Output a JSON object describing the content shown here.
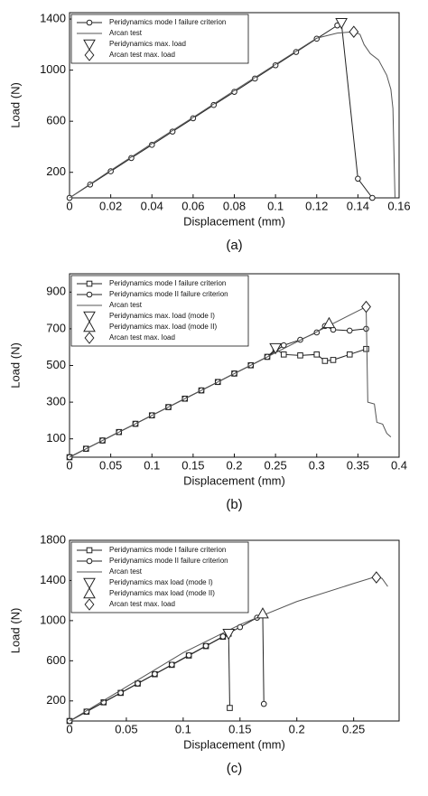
{
  "chart_data": [
    {
      "type": "line",
      "caption": "(a)",
      "x_label": "Displacement (mm)",
      "y_label": "Load (N)",
      "xlim": [
        0,
        0.16
      ],
      "xticks": [
        0,
        0.02,
        0.04,
        0.06,
        0.08,
        0.1,
        0.12,
        0.14,
        0.16
      ],
      "ylim": [
        0,
        1450
      ],
      "yticks": [
        200,
        600,
        1000,
        1400
      ],
      "legend": "upper-left",
      "series": [
        {
          "name": "Peridynamics mode I failure criterion",
          "color": "#222",
          "marker": "circle",
          "line": true,
          "x": [
            0,
            0.01,
            0.02,
            0.03,
            0.04,
            0.05,
            0.06,
            0.07,
            0.08,
            0.09,
            0.1,
            0.11,
            0.12,
            0.13,
            0.132,
            0.14,
            0.147
          ],
          "values": [
            0,
            104,
            208,
            312,
            415,
            519,
            623,
            727,
            830,
            934,
            1038,
            1142,
            1246,
            1350,
            1370,
            150,
            0
          ]
        },
        {
          "name": "Arcan test",
          "color": "#555",
          "marker": "none",
          "line": true,
          "x": [
            0,
            0.02,
            0.04,
            0.06,
            0.08,
            0.1,
            0.12,
            0.13,
            0.138,
            0.141,
            0.143,
            0.146,
            0.15,
            0.154,
            0.156,
            0.157,
            0.158
          ],
          "values": [
            0,
            215,
            425,
            630,
            840,
            1045,
            1250,
            1290,
            1300,
            1280,
            1200,
            1130,
            1080,
            960,
            850,
            700,
            0
          ]
        },
        {
          "name": "Peridynamics max. load",
          "color": "#222",
          "marker": "triangle-down",
          "line": false,
          "x": [
            0.132
          ],
          "values": [
            1370
          ]
        },
        {
          "name": "Arcan test max. load",
          "color": "#222",
          "marker": "diamond",
          "line": false,
          "x": [
            0.138
          ],
          "values": [
            1300
          ]
        }
      ]
    },
    {
      "type": "line",
      "caption": "(b)",
      "x_label": "Displacement (mm)",
      "y_label": "Load (N)",
      "xlim": [
        0,
        0.4
      ],
      "xticks": [
        0,
        0.05,
        0.1,
        0.15,
        0.2,
        0.25,
        0.3,
        0.35,
        0.4
      ],
      "ylim": [
        0,
        1000
      ],
      "yticks": [
        100,
        300,
        500,
        700,
        900
      ],
      "legend": "upper-left",
      "series": [
        {
          "name": "Peridynamics mode I failure criterion",
          "color": "#222",
          "marker": "square",
          "line": true,
          "x": [
            0,
            0.02,
            0.04,
            0.06,
            0.08,
            0.1,
            0.12,
            0.14,
            0.16,
            0.18,
            0.2,
            0.22,
            0.24,
            0.25,
            0.26,
            0.28,
            0.3,
            0.31,
            0.32,
            0.34,
            0.36
          ],
          "values": [
            0,
            46,
            91,
            137,
            182,
            228,
            273,
            319,
            364,
            410,
            456,
            501,
            547,
            590,
            560,
            555,
            560,
            525,
            530,
            560,
            590
          ]
        },
        {
          "name": "Peridynamics mode II failure criterion",
          "color": "#222",
          "marker": "circle",
          "line": true,
          "x": [
            0,
            0.02,
            0.04,
            0.06,
            0.08,
            0.1,
            0.12,
            0.14,
            0.16,
            0.18,
            0.2,
            0.22,
            0.24,
            0.26,
            0.28,
            0.3,
            0.31,
            0.32,
            0.34,
            0.36
          ],
          "values": [
            0,
            46,
            91,
            137,
            182,
            228,
            273,
            319,
            364,
            410,
            456,
            501,
            547,
            610,
            640,
            680,
            715,
            695,
            690,
            700
          ]
        },
        {
          "name": "Arcan test",
          "color": "#555",
          "marker": "none",
          "line": true,
          "x": [
            0,
            0.36,
            0.362,
            0.37,
            0.373,
            0.38,
            0.385,
            0.39
          ],
          "values": [
            0,
            820,
            300,
            290,
            190,
            180,
            130,
            110
          ]
        },
        {
          "name": "Peridynamics max. load (mode I)",
          "color": "#222",
          "marker": "triangle-down",
          "line": false,
          "x": [
            0.25
          ],
          "values": [
            595
          ]
        },
        {
          "name": "Peridynamics max. load (mode II)",
          "color": "#222",
          "marker": "triangle-up",
          "line": false,
          "x": [
            0.315
          ],
          "values": [
            730
          ]
        },
        {
          "name": "Arcan test max. load",
          "color": "#222",
          "marker": "diamond",
          "line": false,
          "x": [
            0.36
          ],
          "values": [
            820
          ]
        }
      ]
    },
    {
      "type": "line",
      "caption": "(c)",
      "x_label": "Displacement (mm)",
      "y_label": "Load (N)",
      "xlim": [
        0,
        0.29
      ],
      "xticks": [
        0,
        0.05,
        0.1,
        0.15,
        0.2,
        0.25
      ],
      "ylim": [
        0,
        1800
      ],
      "yticks": [
        200,
        600,
        1000,
        1400,
        1800
      ],
      "legend": "upper-left",
      "series": [
        {
          "name": "Peridynamics mode I failure criterion",
          "color": "#222",
          "marker": "square",
          "line": true,
          "x": [
            0,
            0.015,
            0.03,
            0.045,
            0.06,
            0.075,
            0.09,
            0.105,
            0.12,
            0.135,
            0.14,
            0.141
          ],
          "values": [
            0,
            93,
            186,
            280,
            373,
            466,
            559,
            652,
            746,
            839,
            870,
            130
          ]
        },
        {
          "name": "Peridynamics mode II failure criterion",
          "color": "#222",
          "marker": "circle",
          "line": true,
          "x": [
            0,
            0.015,
            0.03,
            0.045,
            0.06,
            0.075,
            0.09,
            0.105,
            0.12,
            0.135,
            0.15,
            0.165,
            0.17,
            0.171
          ],
          "values": [
            0,
            94,
            187,
            281,
            374,
            468,
            561,
            655,
            748,
            842,
            935,
            1029,
            1060,
            170
          ]
        },
        {
          "name": "Arcan test",
          "color": "#555",
          "marker": "none",
          "line": true,
          "x": [
            0,
            0.05,
            0.1,
            0.15,
            0.2,
            0.25,
            0.27,
            0.275,
            0.28
          ],
          "values": [
            0,
            340,
            680,
            960,
            1190,
            1370,
            1440,
            1420,
            1340
          ]
        },
        {
          "name": "Peridynamics max load (mode I)",
          "color": "#222",
          "marker": "triangle-down",
          "line": false,
          "x": [
            0.14
          ],
          "values": [
            870
          ]
        },
        {
          "name": "Peridynamics max load (mode II)",
          "color": "#222",
          "marker": "triangle-up",
          "line": false,
          "x": [
            0.17
          ],
          "values": [
            1070
          ]
        },
        {
          "name": "Arcan test max. load",
          "color": "#222",
          "marker": "diamond",
          "line": false,
          "x": [
            0.27
          ],
          "values": [
            1430
          ]
        }
      ]
    }
  ]
}
